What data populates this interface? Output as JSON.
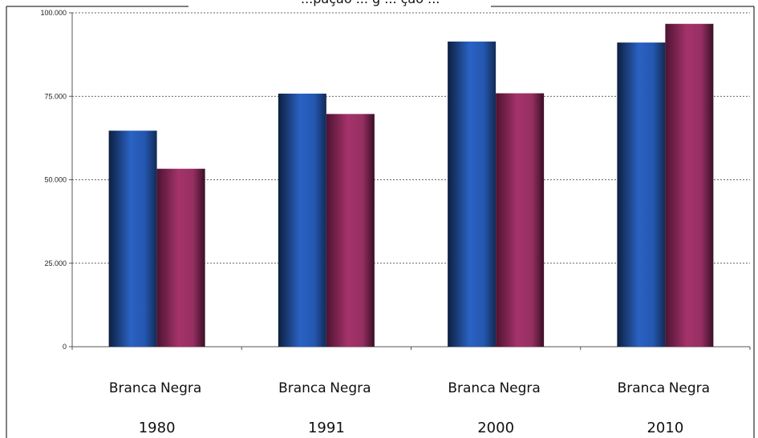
{
  "chart_data": {
    "type": "bar",
    "title": "...pação ... g ... ção ...",
    "categories": [
      "1980",
      "1991",
      "2000",
      "2010"
    ],
    "series": [
      {
        "name": "Branca",
        "values": [
          64700,
          75800,
          91400,
          91100
        ]
      },
      {
        "name": "Negra",
        "values": [
          53300,
          69700,
          75900,
          96700
        ]
      }
    ],
    "y_ticks": [
      "0",
      "25.000",
      "50.000",
      "75.000",
      "100.000"
    ],
    "ylim": [
      0,
      100000
    ],
    "grid": true,
    "legend": "none",
    "colors": {
      "Branca": "#2457b0",
      "Negra": "#962f62"
    }
  }
}
